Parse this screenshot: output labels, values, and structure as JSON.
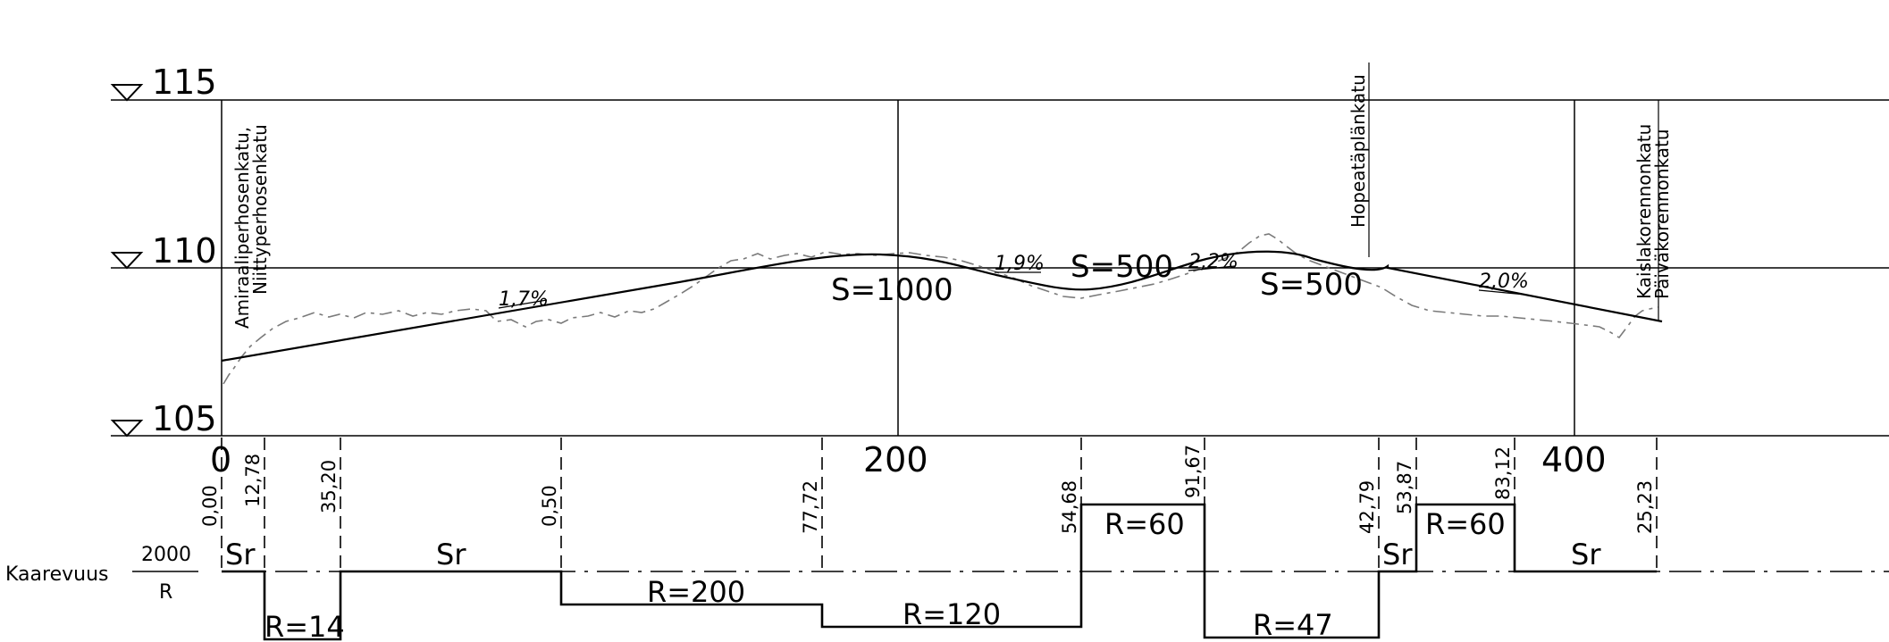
{
  "elevation_labels": [
    "115",
    "110",
    "105"
  ],
  "chainage_labels": [
    "0",
    "200",
    "400"
  ],
  "street_labels": {
    "start_1": "Amiraaliperhosenkatu,",
    "start_2": "Niittyperhosenkatu",
    "mid": "Hopeatäplänkatu",
    "end_1": "Kaislakorennonkatu",
    "end_2": "Päiväkorennonkatu"
  },
  "grades": [
    "1,7%",
    "1,9%",
    "2,2%",
    "2,0%"
  ],
  "vertical_curves": [
    "S=1000",
    "S=500",
    "S=500"
  ],
  "curvature": {
    "label": "Kaarevuus",
    "numerator": "2000",
    "denominator": "R"
  },
  "tick_values": [
    "0,00",
    "12,78",
    "35,20",
    "0,50",
    "77,72",
    "54,68",
    "91,67",
    "42,79",
    "53,87",
    "83,12",
    "25,23"
  ],
  "curve_labels": [
    "Sr",
    "R=14",
    "Sr",
    "R=200",
    "R=120",
    "R=60",
    "R=47",
    "Sr",
    "R=60",
    "Sr"
  ]
}
